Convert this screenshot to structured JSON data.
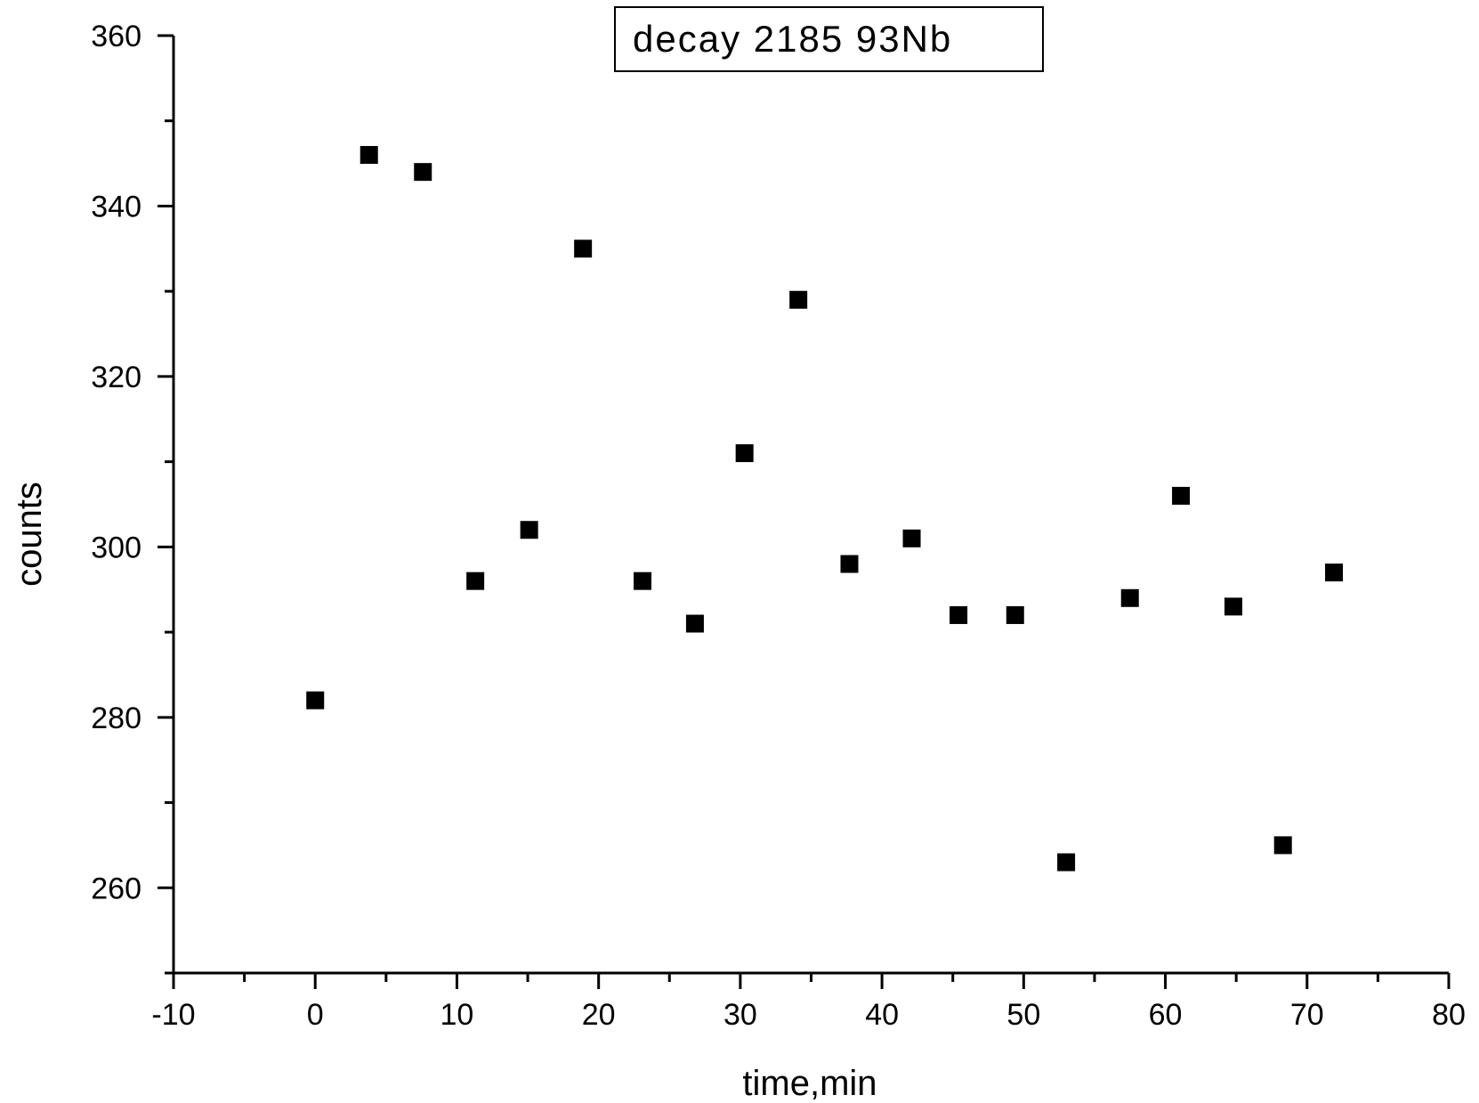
{
  "chart_data": {
    "type": "scatter",
    "xlabel": "time,min",
    "ylabel": "counts",
    "xlim": [
      -10,
      80
    ],
    "ylim": [
      250,
      360
    ],
    "x_ticks": [
      -10,
      0,
      10,
      20,
      30,
      40,
      50,
      60,
      70,
      80
    ],
    "y_ticks": [
      260,
      280,
      300,
      320,
      340,
      360
    ],
    "x_minor_step": 5,
    "y_minor_step": 10,
    "grid": false,
    "marker": "square",
    "marker_color": "#000000",
    "legend_position": "top-center",
    "series": [
      {
        "name": "decay 2185 93Nb",
        "points": [
          {
            "x": 0,
            "y": 282
          },
          {
            "x": 3.8,
            "y": 346
          },
          {
            "x": 7.6,
            "y": 344
          },
          {
            "x": 11.3,
            "y": 296
          },
          {
            "x": 15.1,
            "y": 302
          },
          {
            "x": 18.9,
            "y": 335
          },
          {
            "x": 23.1,
            "y": 296
          },
          {
            "x": 26.8,
            "y": 291
          },
          {
            "x": 30.3,
            "y": 311
          },
          {
            "x": 34.1,
            "y": 329
          },
          {
            "x": 37.7,
            "y": 298
          },
          {
            "x": 42.1,
            "y": 301
          },
          {
            "x": 45.4,
            "y": 292
          },
          {
            "x": 49.4,
            "y": 292
          },
          {
            "x": 53.0,
            "y": 263
          },
          {
            "x": 57.5,
            "y": 294
          },
          {
            "x": 61.1,
            "y": 306
          },
          {
            "x": 64.8,
            "y": 293
          },
          {
            "x": 68.3,
            "y": 265
          },
          {
            "x": 71.9,
            "y": 297
          }
        ]
      }
    ]
  }
}
